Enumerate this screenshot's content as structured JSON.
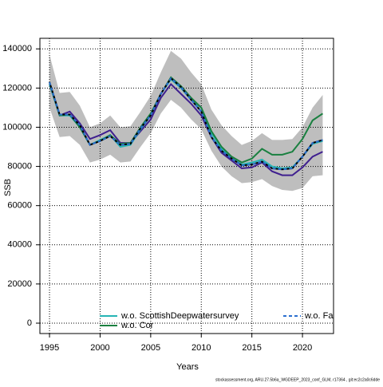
{
  "chart_data": {
    "type": "line",
    "xlabel": "Years",
    "ylabel": "SSB",
    "footer": "stockassessment.org, ARU.27.5b6a_WGDEEP_2023_conf_GLM, r17364 , git:ec2c2a0c6dde",
    "x": [
      1995,
      1996,
      1997,
      1998,
      1999,
      2000,
      2001,
      2002,
      2003,
      2004,
      2005,
      2006,
      2007,
      2008,
      2009,
      2010,
      2011,
      2012,
      2013,
      2014,
      2015,
      2016,
      2017,
      2018,
      2019,
      2020,
      2021,
      2022
    ],
    "xlim": [
      1994.05,
      2023.07
    ],
    "xticks": [
      1995,
      2000,
      2005,
      2010,
      2015,
      2020
    ],
    "ylim": [
      -5300,
      145400
    ],
    "yticks": [
      0,
      20000,
      40000,
      60000,
      80000,
      100000,
      120000,
      140000
    ],
    "grid": true,
    "band_color": "#bebebe",
    "band_low": [
      110000,
      95000,
      95500,
      91000,
      82000,
      83500,
      86000,
      82000,
      82500,
      90000,
      97000,
      107000,
      114000,
      110000,
      104000,
      99000,
      88000,
      80000,
      75000,
      71500,
      72000,
      73500,
      70000,
      68000,
      67500,
      69000,
      75000,
      75500
    ],
    "band_high": [
      137000,
      117500,
      118000,
      111000,
      100000,
      102000,
      106000,
      100000,
      100500,
      108000,
      116000,
      128000,
      139000,
      135000,
      128000,
      122000,
      109000,
      101000,
      95500,
      91000,
      93000,
      97000,
      93500,
      93500,
      94000,
      100000,
      110000,
      116500
    ],
    "series": [
      {
        "color": "#3f1f8f",
        "values": [
          122000,
          106000,
          108000,
          102000,
          94000,
          96000,
          98500,
          92000,
          92000,
          98000,
          104000,
          115000,
          122000,
          117000,
          112000,
          106000,
          95000,
          87000,
          83000,
          79000,
          79500,
          82000,
          77500,
          75500,
          75500,
          79500,
          85000,
          87500
        ]
      },
      {
        "name": "w.o. ScottishDeepwatersurvey",
        "color": "#26b5b5",
        "values": [
          122000,
          106000,
          106000,
          100000,
          91000,
          93500,
          96000,
          90000,
          91000,
          99000,
          106000,
          117000,
          124500,
          120000,
          114000,
          110000,
          97000,
          89000,
          84000,
          81000,
          82000,
          83500,
          80000,
          79000,
          79500,
          85000,
          91500,
          93000
        ]
      },
      {
        "name": "w.o. Cor",
        "color": "#1a8040",
        "values": [
          123000,
          106000,
          106500,
          100000,
          91000,
          93000,
          96000,
          91500,
          92000,
          100000,
          107000,
          117000,
          125500,
          121000,
          115000,
          110000,
          98000,
          90000,
          85000,
          82000,
          84000,
          89000,
          86000,
          86000,
          87500,
          94000,
          103500,
          107000
        ]
      },
      {
        "color": "#000000",
        "values": [
          123000,
          106500,
          106500,
          101000,
          91000,
          93000,
          95500,
          91000,
          91500,
          99500,
          106000,
          117000,
          125000,
          120500,
          114000,
          108000,
          95000,
          88000,
          84000,
          80500,
          81000,
          82500,
          79000,
          78500,
          79000,
          85000,
          92000,
          93500
        ]
      },
      {
        "name": "w.o. FaroeseDeepWaterSurvey",
        "color": "#2b6fcf",
        "dash": true,
        "values": [
          123000,
          106500,
          106500,
          101000,
          91000,
          93000,
          95500,
          91000,
          91500,
          99500,
          106000,
          117000,
          125000,
          120500,
          114000,
          108000,
          95000,
          88000,
          84000,
          80500,
          81000,
          82500,
          79000,
          78500,
          79000,
          85000,
          92000,
          93500
        ]
      }
    ]
  }
}
